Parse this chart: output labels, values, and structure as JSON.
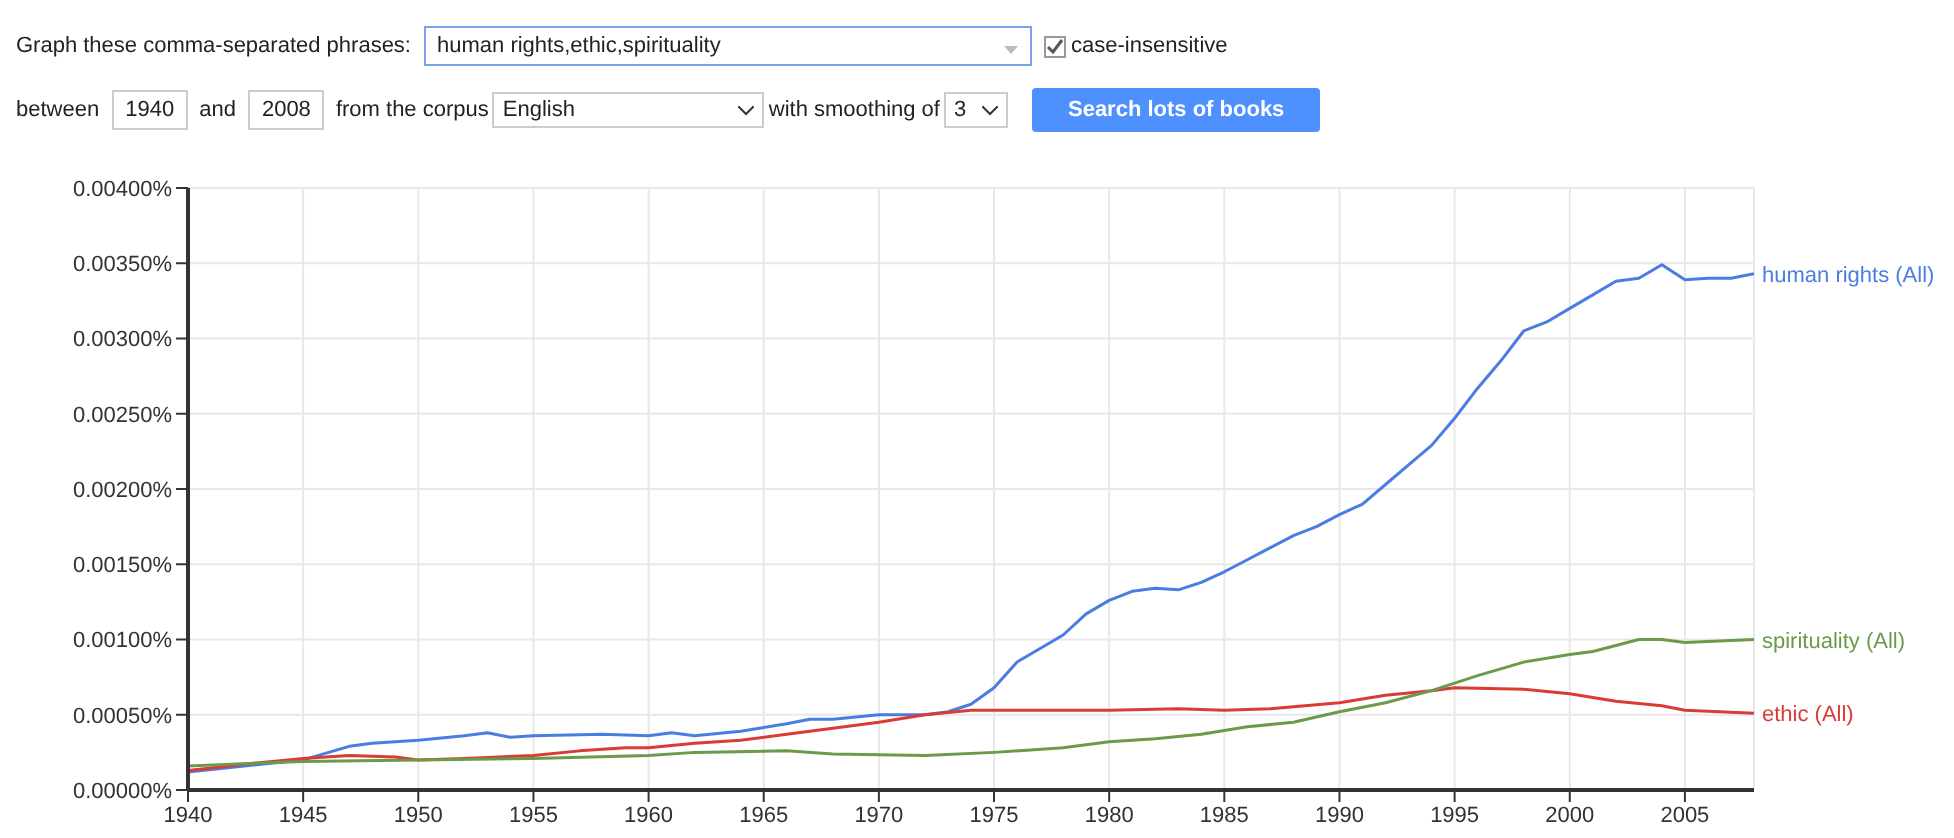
{
  "chart_data": {
    "type": "line",
    "annotations": [
      "Graph these comma-separated phrases:",
      "human rights,ethic,spirituality",
      "case-insensitive",
      "between",
      "1940",
      "and",
      "2008",
      "from the corpus",
      "English",
      "with smoothing of",
      "3",
      "Search lots of books"
    ],
    "series": [
      {
        "name": "human rights (All)",
        "color": "#4a7de2",
        "x": [
          1940,
          1945,
          1947,
          1948,
          1950,
          1952,
          1953,
          1954,
          1955,
          1958,
          1960,
          1961,
          1962,
          1964,
          1966,
          1967,
          1968,
          1970,
          1972,
          1973,
          1974,
          1975,
          1976,
          1977,
          1978,
          1979,
          1980,
          1981,
          1982,
          1983,
          1984,
          1985,
          1986,
          1987,
          1988,
          1989,
          1990,
          1991,
          1992,
          1993,
          1994,
          1995,
          1996,
          1997,
          1998,
          1999,
          2000,
          2001,
          2002,
          2003,
          2004,
          2005,
          2006,
          2007,
          2008
        ],
        "values": [
          0.00012,
          0.0002,
          0.00029,
          0.00031,
          0.00033,
          0.00036,
          0.00038,
          0.00035,
          0.00036,
          0.00037,
          0.00036,
          0.00038,
          0.00036,
          0.00039,
          0.00044,
          0.00047,
          0.00047,
          0.0005,
          0.0005,
          0.00052,
          0.00057,
          0.00068,
          0.00085,
          0.00094,
          0.00103,
          0.00117,
          0.00126,
          0.00132,
          0.00134,
          0.00133,
          0.00138,
          0.00145,
          0.00153,
          0.00161,
          0.00169,
          0.00175,
          0.00183,
          0.0019,
          0.00203,
          0.00216,
          0.00229,
          0.00247,
          0.00267,
          0.00285,
          0.00305,
          0.00311,
          0.0032,
          0.00329,
          0.00338,
          0.0034,
          0.00349,
          0.00339,
          0.0034,
          0.0034,
          0.00343
        ]
      },
      {
        "name": "ethic (All)",
        "color": "#db3b35",
        "x": [
          1940,
          1943,
          1945,
          1947,
          1949,
          1950,
          1952,
          1955,
          1957,
          1959,
          1960,
          1962,
          1964,
          1966,
          1968,
          1970,
          1972,
          1974,
          1975,
          1980,
          1983,
          1985,
          1987,
          1990,
          1992,
          1994,
          1995,
          1998,
          2000,
          2002,
          2004,
          2005,
          2008
        ],
        "values": [
          0.00013,
          0.00018,
          0.00021,
          0.00023,
          0.00022,
          0.0002,
          0.00021,
          0.00023,
          0.00026,
          0.00028,
          0.00028,
          0.00031,
          0.00033,
          0.00037,
          0.00041,
          0.00045,
          0.0005,
          0.00053,
          0.00053,
          0.00053,
          0.00054,
          0.00053,
          0.00054,
          0.00058,
          0.00063,
          0.00066,
          0.00068,
          0.00067,
          0.00064,
          0.00059,
          0.00056,
          0.00053,
          0.00051
        ]
      },
      {
        "name": "spirituality (All)",
        "color": "#6a9a4a",
        "x": [
          1940,
          1945,
          1950,
          1955,
          1960,
          1962,
          1966,
          1968,
          1972,
          1975,
          1978,
          1980,
          1982,
          1984,
          1986,
          1988,
          1990,
          1992,
          1994,
          1996,
          1998,
          2000,
          2001,
          2003,
          2004,
          2005,
          2008
        ],
        "values": [
          0.00016,
          0.00019,
          0.0002,
          0.00021,
          0.00023,
          0.00025,
          0.00026,
          0.00024,
          0.00023,
          0.00025,
          0.00028,
          0.00032,
          0.00034,
          0.00037,
          0.00042,
          0.00045,
          0.00052,
          0.00058,
          0.00066,
          0.00076,
          0.00085,
          0.0009,
          0.00092,
          0.001,
          0.001,
          0.00098,
          0.001
        ]
      }
    ],
    "xlim": [
      1940,
      2008
    ],
    "xticks": [
      1940,
      1945,
      1950,
      1955,
      1960,
      1965,
      1970,
      1975,
      1980,
      1985,
      1990,
      1995,
      2000,
      2005
    ],
    "ylim": [
      0,
      0.004
    ],
    "yticks": [
      {
        "value": 0,
        "label": "0.00000%"
      },
      {
        "value": 0.0005,
        "label": "0.00050%"
      },
      {
        "value": 0.001,
        "label": "0.00100%"
      },
      {
        "value": 0.0015,
        "label": "0.00150%"
      },
      {
        "value": 0.002,
        "label": "0.00200%"
      },
      {
        "value": 0.0025,
        "label": "0.00250%"
      },
      {
        "value": 0.003,
        "label": "0.00300%"
      },
      {
        "value": 0.0035,
        "label": "0.00350%"
      },
      {
        "value": 0.004,
        "label": "0.00400%"
      }
    ],
    "grid": true,
    "legend": false,
    "marker": "none",
    "line_style": "solid"
  }
}
